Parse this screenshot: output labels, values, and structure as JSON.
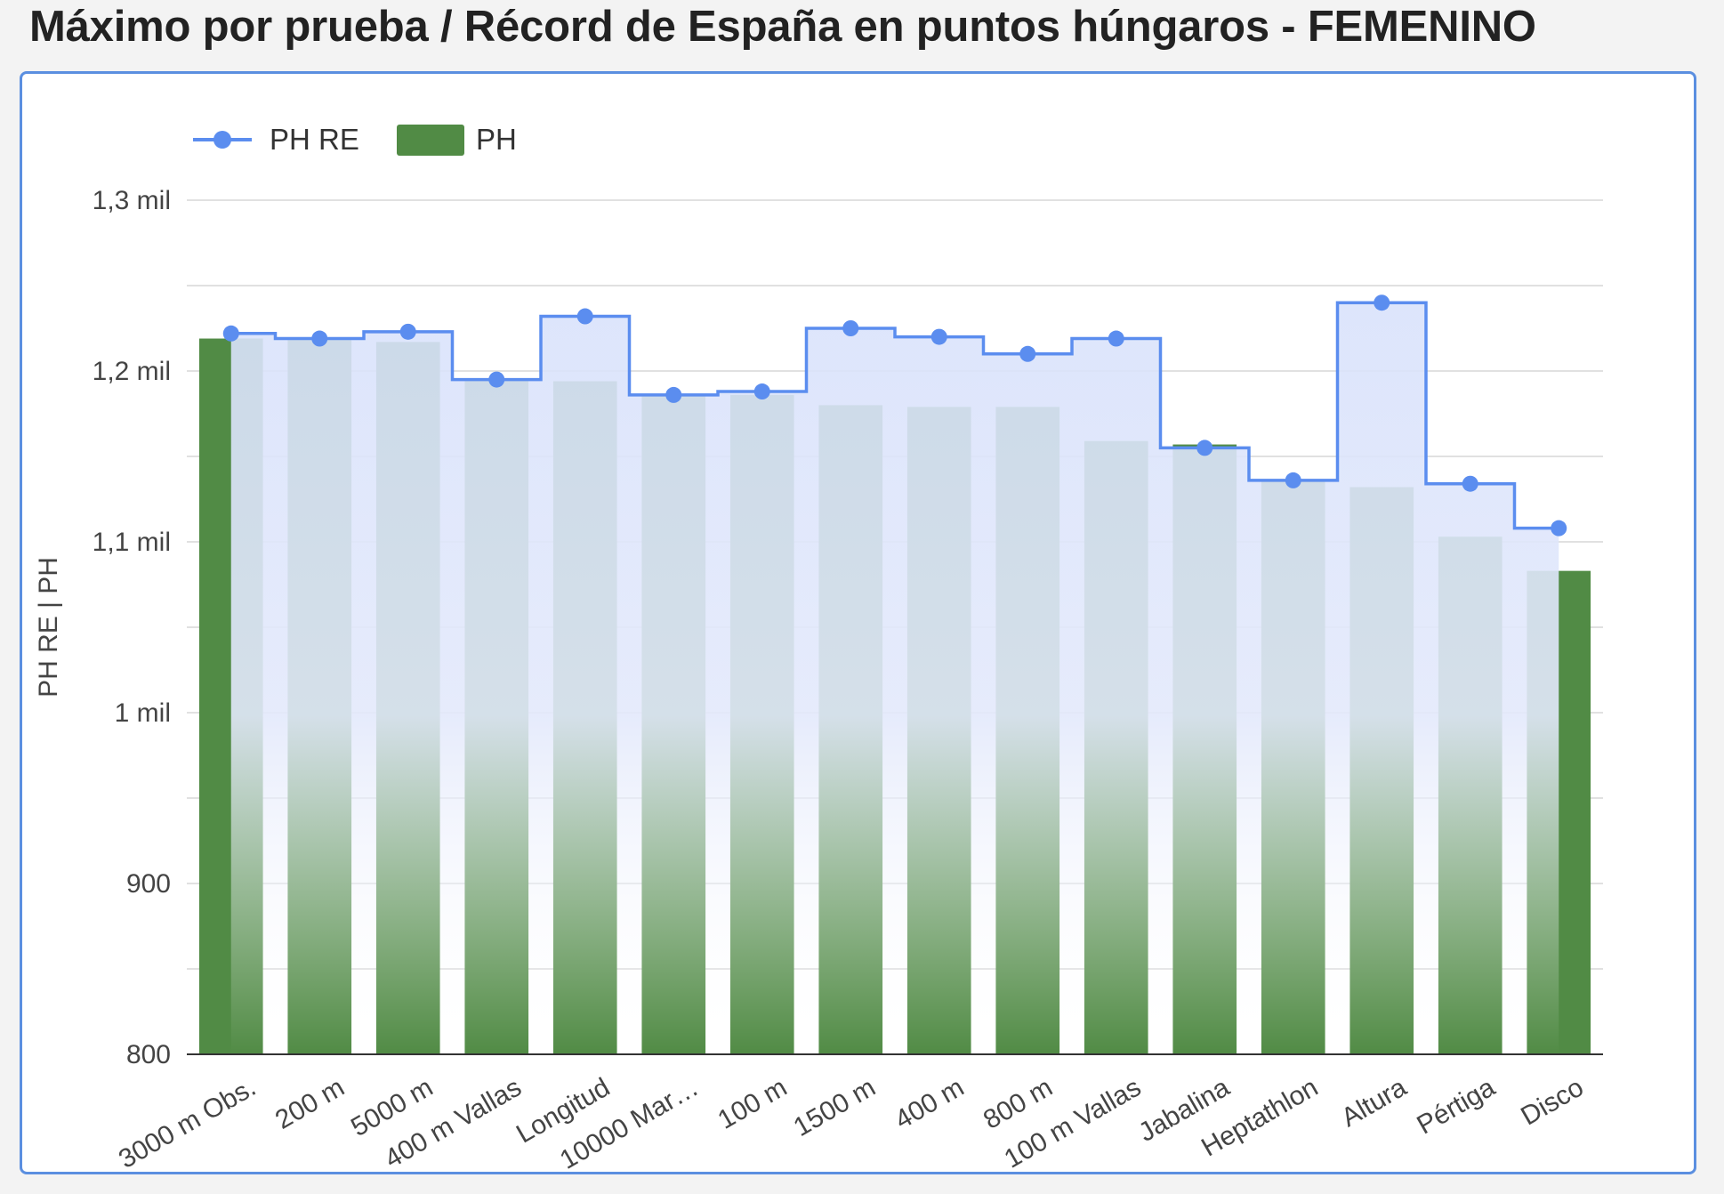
{
  "page": {
    "title": "Máximo por prueba / Récord de España en puntos húngaros - FEMENINO"
  },
  "colors": {
    "bar": "#518b45",
    "line": "#5b8def",
    "area": "#d9e2fb",
    "grid": "#d7d7d7",
    "axis": "#333333",
    "text": "#444444"
  },
  "chart_data": {
    "type": "bar",
    "title": "",
    "xlabel": "",
    "ylabel": "PH RE | PH",
    "ylim": [
      800,
      1300
    ],
    "yticks": [
      {
        "value": 800,
        "label": "800"
      },
      {
        "value": 900,
        "label": "900"
      },
      {
        "value": 1000,
        "label": "1 mil"
      },
      {
        "value": 1100,
        "label": "1,1 mil"
      },
      {
        "value": 1200,
        "label": "1,2 mil"
      },
      {
        "value": 1300,
        "label": "1,3 mil"
      }
    ],
    "gridlines": [
      800,
      850,
      900,
      950,
      1000,
      1050,
      1100,
      1150,
      1200,
      1250,
      1300
    ],
    "legend_position": "top-left",
    "categories": [
      "3000 m Obs.",
      "200 m",
      "5000 m",
      "400 m Vallas",
      "Longitud",
      "10000 Mar…",
      "100 m",
      "1500 m",
      "400 m",
      "800 m",
      "100 m Vallas",
      "Jabalina",
      "Heptathlon",
      "Altura",
      "Pértiga",
      "Disco"
    ],
    "series": [
      {
        "name": "PH RE",
        "type": "stepped-area",
        "values": [
          1222,
          1219,
          1223,
          1195,
          1232,
          1186,
          1188,
          1225,
          1220,
          1210,
          1219,
          1155,
          1136,
          1240,
          1134,
          1108
        ]
      },
      {
        "name": "PH",
        "type": "bar",
        "values": [
          1219,
          1219,
          1217,
          1195,
          1194,
          1186,
          1186,
          1180,
          1179,
          1179,
          1159,
          1157,
          1136,
          1132,
          1103,
          1083
        ]
      }
    ]
  }
}
